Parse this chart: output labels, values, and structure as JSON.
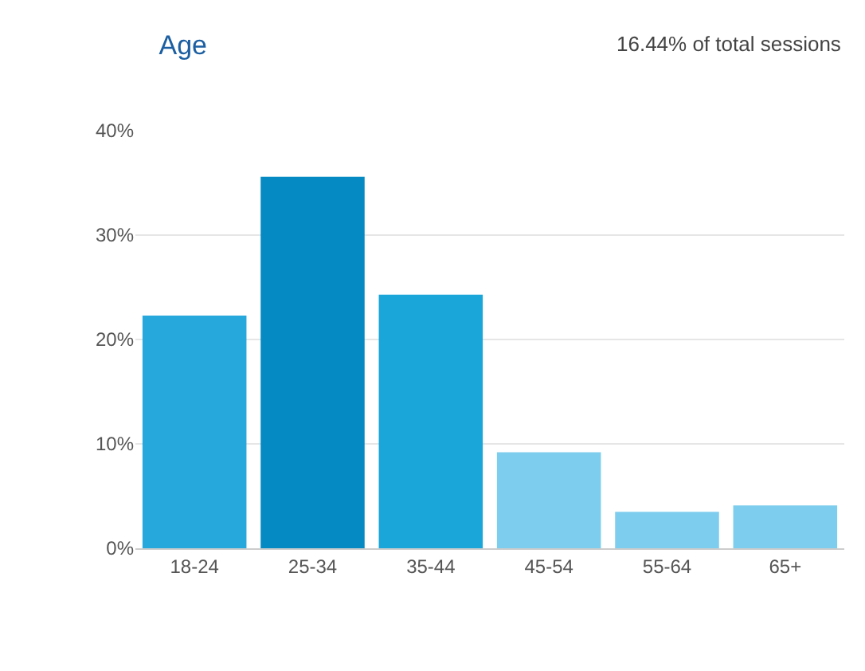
{
  "chart_data": {
    "type": "bar",
    "title": "Age",
    "annotations": [
      "16.44% of total sessions"
    ],
    "categories": [
      "18-24",
      "25-34",
      "35-44",
      "45-54",
      "55-64",
      "65+"
    ],
    "values": [
      22.3,
      35.6,
      24.3,
      9.2,
      3.5,
      4.1
    ],
    "colors": [
      "#27a8dc",
      "#058ac4",
      "#1aa6d9",
      "#7dcdee",
      "#7dcdee",
      "#7dcdee"
    ],
    "ylim": [
      0,
      40
    ],
    "yticks": [
      {
        "value": 0,
        "label": "0%"
      },
      {
        "value": 10,
        "label": "10%"
      },
      {
        "value": 20,
        "label": "20%"
      },
      {
        "value": 30,
        "label": "30%"
      },
      {
        "value": 40,
        "label": "40%"
      }
    ],
    "grid": "y"
  }
}
